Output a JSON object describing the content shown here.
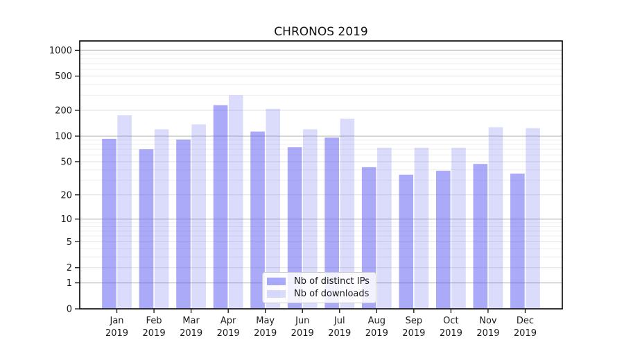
{
  "title": "CHRONOS 2019",
  "chart_data": {
    "type": "bar",
    "title": "CHRONOS 2019",
    "xlabel": "",
    "ylabel": "",
    "categories": [
      "Jan",
      "Feb",
      "Mar",
      "Apr",
      "May",
      "Jun",
      "Jul",
      "Aug",
      "Sep",
      "Oct",
      "Nov",
      "Dec"
    ],
    "category_year": "2019",
    "series": [
      {
        "name": "Nb of distinct IPs",
        "color": "rgba(86,86,242,0.5)",
        "values": [
          93,
          70,
          91,
          230,
          113,
          74,
          96,
          43,
          35,
          39,
          47,
          36
        ]
      },
      {
        "name": "Nb of downloads",
        "color": "rgba(86,86,242,0.21)",
        "values": [
          175,
          120,
          137,
          300,
          208,
          120,
          160,
          73,
          73,
          73,
          127,
          124
        ]
      }
    ],
    "yscale": "symlog",
    "ylim": [
      0,
      1282
    ],
    "yticks": [
      0,
      1,
      2,
      5,
      10,
      20,
      50,
      100,
      200,
      500,
      1000
    ],
    "ytick_labels": [
      "0",
      "1",
      "2",
      "5",
      "10",
      "20",
      "50",
      "100",
      "200",
      "500",
      "1000"
    ],
    "decade_lines": [
      1,
      10,
      100,
      1000
    ],
    "minor_lines": [
      3,
      4,
      6,
      7,
      8,
      9,
      30,
      40,
      60,
      70,
      80,
      90,
      300,
      400,
      600,
      700,
      800,
      900
    ],
    "grid": true,
    "legend_position": "lower center"
  },
  "colors": {
    "bar_dark": "rgba(86,86,242,0.5)",
    "bar_light": "rgba(86,86,242,0.21)",
    "grid_decade": "#c4c4c4",
    "grid_labeled": "#e1e1e1",
    "grid_minor": "#efefef",
    "axis": "#000000",
    "text": "#1a1a1a",
    "legend_border": "#cccccc"
  }
}
